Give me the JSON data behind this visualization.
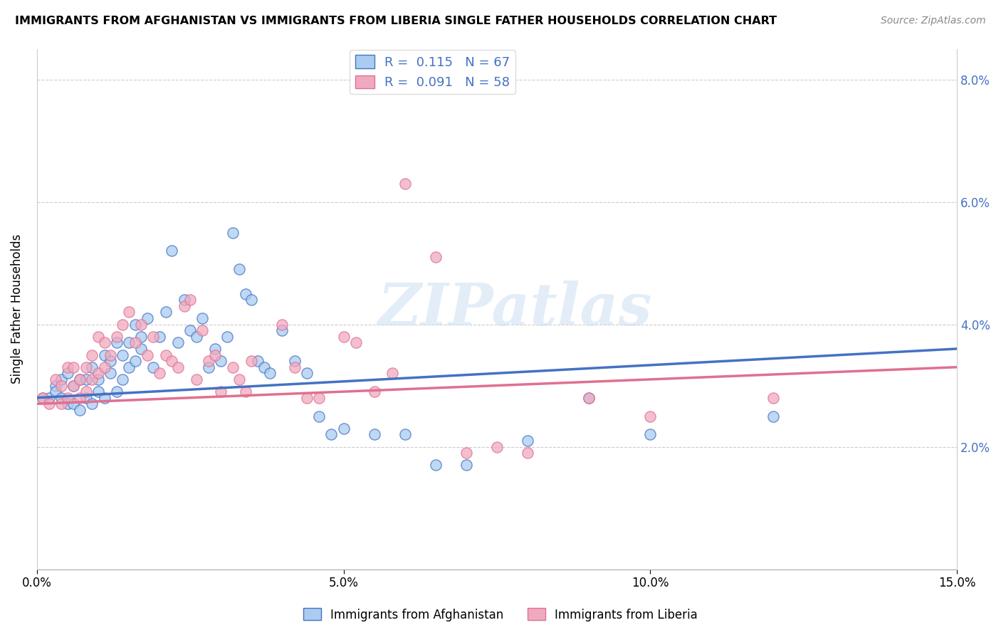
{
  "title": "IMMIGRANTS FROM AFGHANISTAN VS IMMIGRANTS FROM LIBERIA SINGLE FATHER HOUSEHOLDS CORRELATION CHART",
  "source": "Source: ZipAtlas.com",
  "ylabel": "Single Father Households",
  "xlim": [
    0.0,
    0.15
  ],
  "ylim": [
    0.0,
    0.085
  ],
  "color_afghanistan": "#aaccf0",
  "color_liberia": "#f0aac0",
  "line_color_afghanistan": "#4472c4",
  "line_color_liberia": "#e07090",
  "right_tick_color": "#4472c4",
  "watermark": "ZIPatlas",
  "R_afghanistan": 0.115,
  "N_afghanistan": 67,
  "R_liberia": 0.091,
  "N_liberia": 58,
  "bottom_legend_afghanistan": "Immigrants from Afghanistan",
  "bottom_legend_liberia": "Immigrants from Liberia",
  "trend_afg_start": 0.028,
  "trend_afg_end": 0.036,
  "trend_lib_start": 0.027,
  "trend_lib_end": 0.033,
  "afg_x": [
    0.001,
    0.002,
    0.003,
    0.003,
    0.004,
    0.004,
    0.005,
    0.005,
    0.006,
    0.006,
    0.007,
    0.007,
    0.008,
    0.008,
    0.009,
    0.009,
    0.01,
    0.01,
    0.011,
    0.011,
    0.012,
    0.012,
    0.013,
    0.013,
    0.014,
    0.014,
    0.015,
    0.015,
    0.016,
    0.016,
    0.017,
    0.017,
    0.018,
    0.019,
    0.02,
    0.021,
    0.022,
    0.023,
    0.024,
    0.025,
    0.026,
    0.027,
    0.028,
    0.029,
    0.03,
    0.031,
    0.032,
    0.033,
    0.034,
    0.035,
    0.036,
    0.037,
    0.038,
    0.04,
    0.042,
    0.044,
    0.046,
    0.048,
    0.05,
    0.055,
    0.06,
    0.065,
    0.07,
    0.08,
    0.09,
    0.1,
    0.12
  ],
  "afg_y": [
    0.028,
    0.028,
    0.03,
    0.029,
    0.031,
    0.028,
    0.032,
    0.027,
    0.03,
    0.027,
    0.031,
    0.026,
    0.031,
    0.028,
    0.033,
    0.027,
    0.029,
    0.031,
    0.035,
    0.028,
    0.032,
    0.034,
    0.037,
    0.029,
    0.035,
    0.031,
    0.037,
    0.033,
    0.04,
    0.034,
    0.038,
    0.036,
    0.041,
    0.033,
    0.038,
    0.042,
    0.052,
    0.037,
    0.044,
    0.039,
    0.038,
    0.041,
    0.033,
    0.036,
    0.034,
    0.038,
    0.055,
    0.049,
    0.045,
    0.044,
    0.034,
    0.033,
    0.032,
    0.039,
    0.034,
    0.032,
    0.025,
    0.022,
    0.023,
    0.022,
    0.022,
    0.017,
    0.017,
    0.021,
    0.028,
    0.022,
    0.025
  ],
  "lib_x": [
    0.001,
    0.002,
    0.003,
    0.004,
    0.004,
    0.005,
    0.005,
    0.006,
    0.006,
    0.007,
    0.007,
    0.008,
    0.008,
    0.009,
    0.009,
    0.01,
    0.01,
    0.011,
    0.011,
    0.012,
    0.013,
    0.014,
    0.015,
    0.016,
    0.017,
    0.018,
    0.019,
    0.02,
    0.021,
    0.022,
    0.023,
    0.024,
    0.025,
    0.026,
    0.027,
    0.028,
    0.029,
    0.03,
    0.032,
    0.033,
    0.034,
    0.035,
    0.04,
    0.042,
    0.044,
    0.046,
    0.05,
    0.052,
    0.055,
    0.058,
    0.06,
    0.065,
    0.07,
    0.075,
    0.08,
    0.09,
    0.1,
    0.12
  ],
  "lib_y": [
    0.028,
    0.027,
    0.031,
    0.03,
    0.027,
    0.033,
    0.028,
    0.03,
    0.033,
    0.028,
    0.031,
    0.033,
    0.029,
    0.035,
    0.031,
    0.038,
    0.032,
    0.037,
    0.033,
    0.035,
    0.038,
    0.04,
    0.042,
    0.037,
    0.04,
    0.035,
    0.038,
    0.032,
    0.035,
    0.034,
    0.033,
    0.043,
    0.044,
    0.031,
    0.039,
    0.034,
    0.035,
    0.029,
    0.033,
    0.031,
    0.029,
    0.034,
    0.04,
    0.033,
    0.028,
    0.028,
    0.038,
    0.037,
    0.029,
    0.032,
    0.063,
    0.051,
    0.019,
    0.02,
    0.019,
    0.028,
    0.025,
    0.028
  ]
}
